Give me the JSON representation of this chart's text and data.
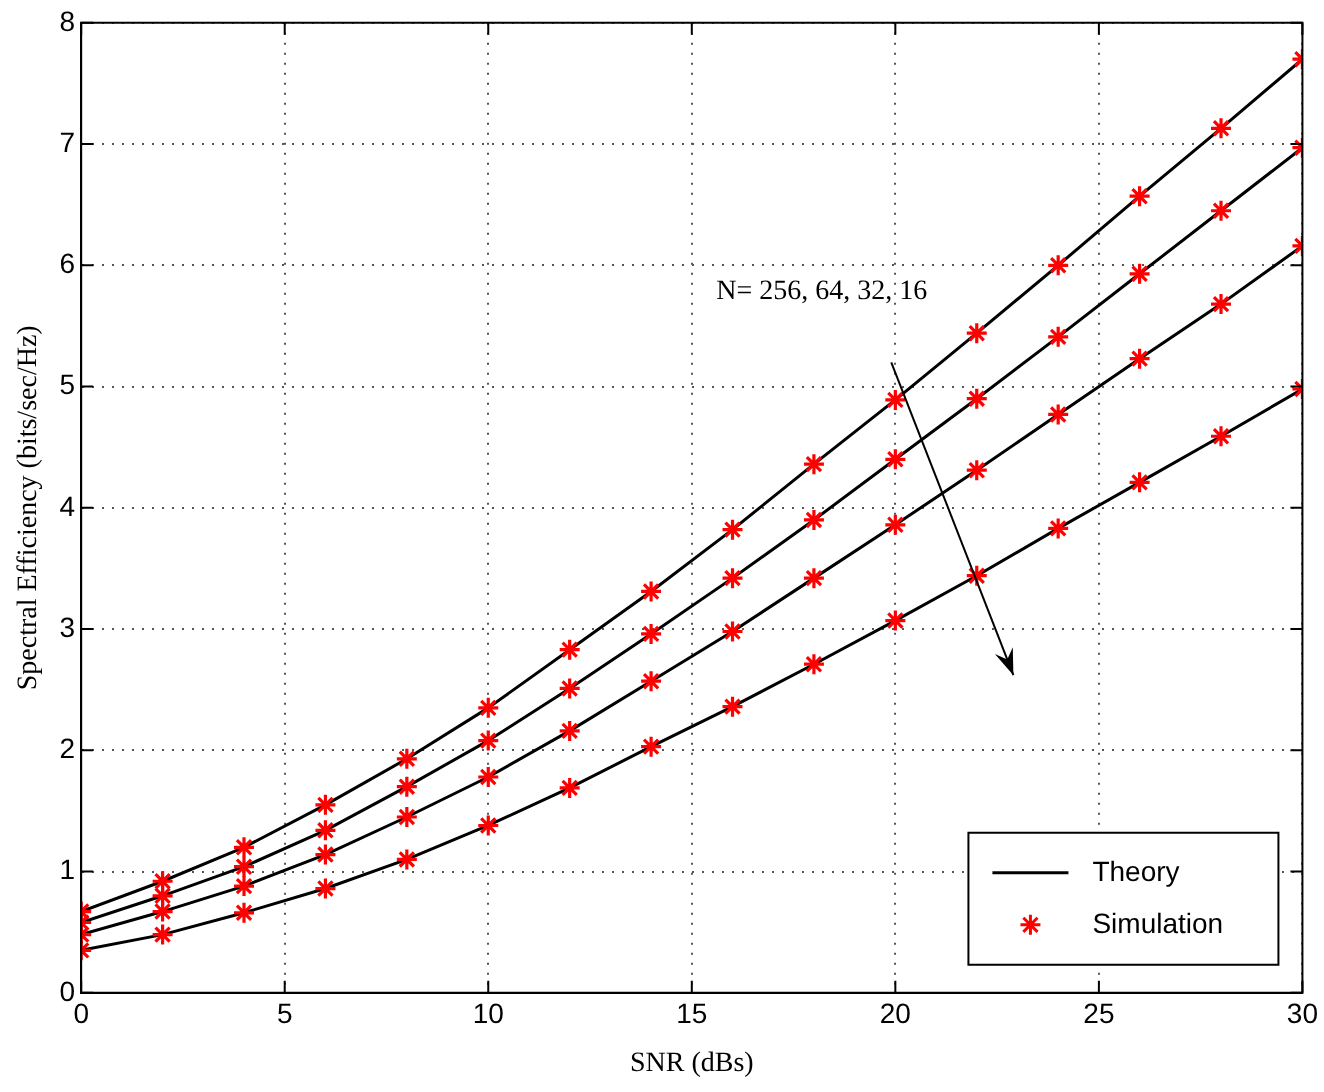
{
  "chart_data": {
    "type": "line",
    "xlabel": "SNR (dBs)",
    "ylabel": "Spectral Efficiency (bits/sec/Hz)",
    "x": [
      0,
      2,
      4,
      6,
      8,
      10,
      12,
      14,
      16,
      18,
      20,
      22,
      24,
      26,
      28,
      30
    ],
    "xlim": [
      0,
      30
    ],
    "xticks": [
      0,
      5,
      10,
      15,
      20,
      25,
      30
    ],
    "ylim": [
      0,
      8
    ],
    "yticks": [
      0,
      1,
      2,
      3,
      4,
      5,
      6,
      7,
      8
    ],
    "grid": true,
    "legend": "bottom right",
    "line_style": "solid",
    "annotations": [
      "N= 256, 64, 32, 16"
    ],
    "series": [
      {
        "name": "Theory",
        "marker": "none",
        "color": "#000000",
        "values": [
          0.67,
          0.92,
          1.2,
          1.55,
          1.93,
          2.35,
          2.83,
          3.31,
          3.82,
          4.36,
          4.89,
          5.44,
          6.0,
          6.57,
          7.13,
          7.7
        ]
      },
      {
        "marker": "none",
        "color": "#000000",
        "values": [
          0.58,
          0.8,
          1.04,
          1.34,
          1.7,
          2.08,
          2.51,
          2.96,
          3.42,
          3.9,
          4.4,
          4.9,
          5.41,
          5.93,
          6.45,
          6.97
        ]
      },
      {
        "marker": "none",
        "color": "#000000",
        "values": [
          0.48,
          0.67,
          0.88,
          1.14,
          1.45,
          1.78,
          2.16,
          2.57,
          2.98,
          3.42,
          3.86,
          4.31,
          4.77,
          5.23,
          5.68,
          6.16
        ]
      },
      {
        "marker": "none",
        "color": "#000000",
        "values": [
          0.35,
          0.48,
          0.66,
          0.86,
          1.1,
          1.38,
          1.69,
          2.03,
          2.36,
          2.71,
          3.07,
          3.44,
          3.83,
          4.21,
          4.59,
          4.98
        ]
      },
      {
        "name": "Simulation",
        "type": "scatter",
        "marker": "cross",
        "color": "#ff0000",
        "values": [
          0.67,
          0.92,
          1.2,
          1.55,
          1.93,
          2.35,
          2.83,
          3.31,
          3.82,
          4.36,
          4.89,
          5.44,
          6.0,
          6.57,
          7.13,
          7.7
        ]
      },
      {
        "type": "scatter",
        "marker": "cross",
        "color": "#ff0000",
        "values": [
          0.58,
          0.8,
          1.04,
          1.34,
          1.7,
          2.08,
          2.51,
          2.96,
          3.42,
          3.9,
          4.4,
          4.9,
          5.41,
          5.93,
          6.45,
          6.97
        ]
      },
      {
        "type": "scatter",
        "marker": "cross",
        "color": "#ff0000",
        "values": [
          0.48,
          0.67,
          0.88,
          1.14,
          1.45,
          1.78,
          2.16,
          2.57,
          2.98,
          3.42,
          3.86,
          4.31,
          4.77,
          5.23,
          5.68,
          6.16
        ]
      },
      {
        "type": "scatter",
        "marker": "cross",
        "color": "#ff0000",
        "values": [
          0.35,
          0.48,
          0.66,
          0.86,
          1.1,
          1.38,
          1.69,
          2.03,
          2.36,
          2.71,
          3.07,
          3.44,
          3.83,
          4.21,
          4.59,
          4.98
        ]
      }
    ]
  }
}
